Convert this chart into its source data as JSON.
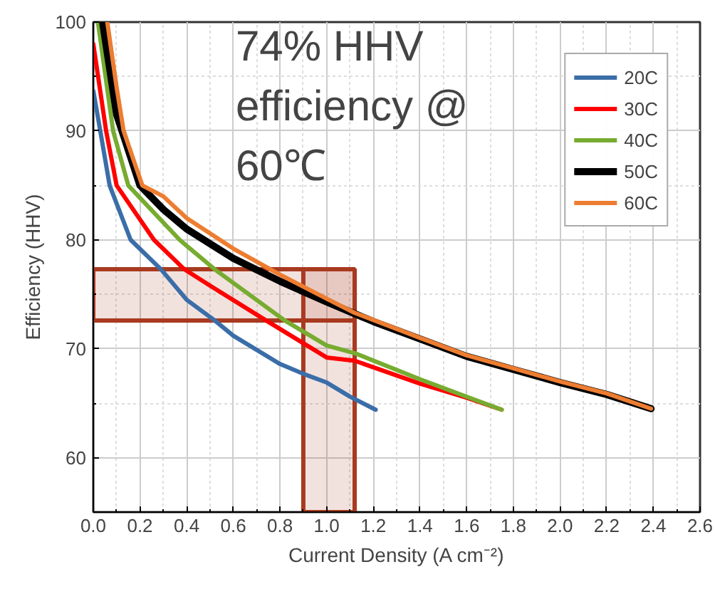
{
  "chart_data": {
    "type": "line",
    "xlabel": "Current Density (A cm⁻²)",
    "ylabel": "Efficiency (HHV)",
    "annotations": [
      "74% HHV\nefficiency @\n60℃"
    ],
    "xlim": [
      0,
      2.6
    ],
    "ylim": [
      55,
      100
    ],
    "xticks": [
      {
        "value": 0,
        "label": "0.0"
      },
      0.2,
      0.4,
      0.6,
      0.8,
      {
        "value": 1,
        "label": "1.0"
      },
      1.2,
      1.4,
      1.6,
      1.8,
      {
        "value": 2,
        "label": "2.0"
      },
      2.2,
      2.4,
      2.6
    ],
    "yticks": [
      60,
      70,
      80,
      90,
      100
    ],
    "grid": true,
    "legend": "top right",
    "marker": "none",
    "line_style": "solid",
    "bands": [
      {
        "axis": "y",
        "from": 72.6,
        "to": 77.3,
        "color": "#a83a1f"
      },
      {
        "axis": "x",
        "from": 0.9,
        "to": 1.12,
        "color": "#a83a1f"
      }
    ],
    "series": [
      {
        "name": "20C",
        "color": "#3b6ea8",
        "x": [
          0,
          0.03,
          0.07,
          0.16,
          0.29,
          0.4,
          0.52,
          0.6,
          0.8,
          0.9,
          1.0,
          1.1,
          1.21
        ],
        "values": [
          93.7,
          90,
          85,
          80,
          77.3,
          74.5,
          72.6,
          71.2,
          68.6,
          67.7,
          66.9,
          65.6,
          64.4
        ]
      },
      {
        "name": "30C",
        "color": "#ff0000",
        "x": [
          0,
          0.055,
          0.1,
          0.26,
          0.39,
          0.5,
          0.74,
          1.0,
          1.12,
          1.4,
          1.6,
          1.75
        ],
        "values": [
          98,
          90,
          85,
          80,
          77.3,
          75.8,
          72.6,
          69.2,
          68.9,
          66.8,
          65.5,
          64.4
        ]
      },
      {
        "name": "40C",
        "color": "#77ac30",
        "x": [
          0.02,
          0.085,
          0.15,
          0.37,
          0.52,
          0.82,
          1.0,
          1.12,
          1.4,
          1.6,
          1.75
        ],
        "values": [
          100,
          90,
          85,
          80,
          77.3,
          72.6,
          70.3,
          69.6,
          67.2,
          65.6,
          64.4
        ]
      },
      {
        "name": "50C",
        "color": "#000000",
        "x": [
          0.04,
          0.1,
          0.2,
          0.3,
          0.4,
          0.6,
          0.8,
          1.0,
          1.2,
          1.4,
          1.6,
          1.8,
          2.0,
          2.2,
          2.39
        ],
        "values": [
          100,
          91.5,
          85,
          82.8,
          81,
          78.3,
          76.2,
          74.3,
          72.5,
          70.9,
          69.3,
          68.1,
          66.9,
          65.8,
          64.5
        ]
      },
      {
        "name": "60C",
        "color": "#ed7d31",
        "x": [
          0.06,
          0.1,
          0.13,
          0.21,
          0.3,
          0.4,
          0.6,
          0.8,
          1.0,
          1.12,
          1.4,
          1.6,
          1.8,
          2.0,
          2.2,
          2.39
        ],
        "values": [
          100,
          94,
          90,
          85,
          84,
          82,
          79.2,
          76.8,
          74.6,
          73.3,
          71.0,
          69.4,
          68.2,
          67.0,
          65.9,
          64.5
        ]
      }
    ]
  }
}
